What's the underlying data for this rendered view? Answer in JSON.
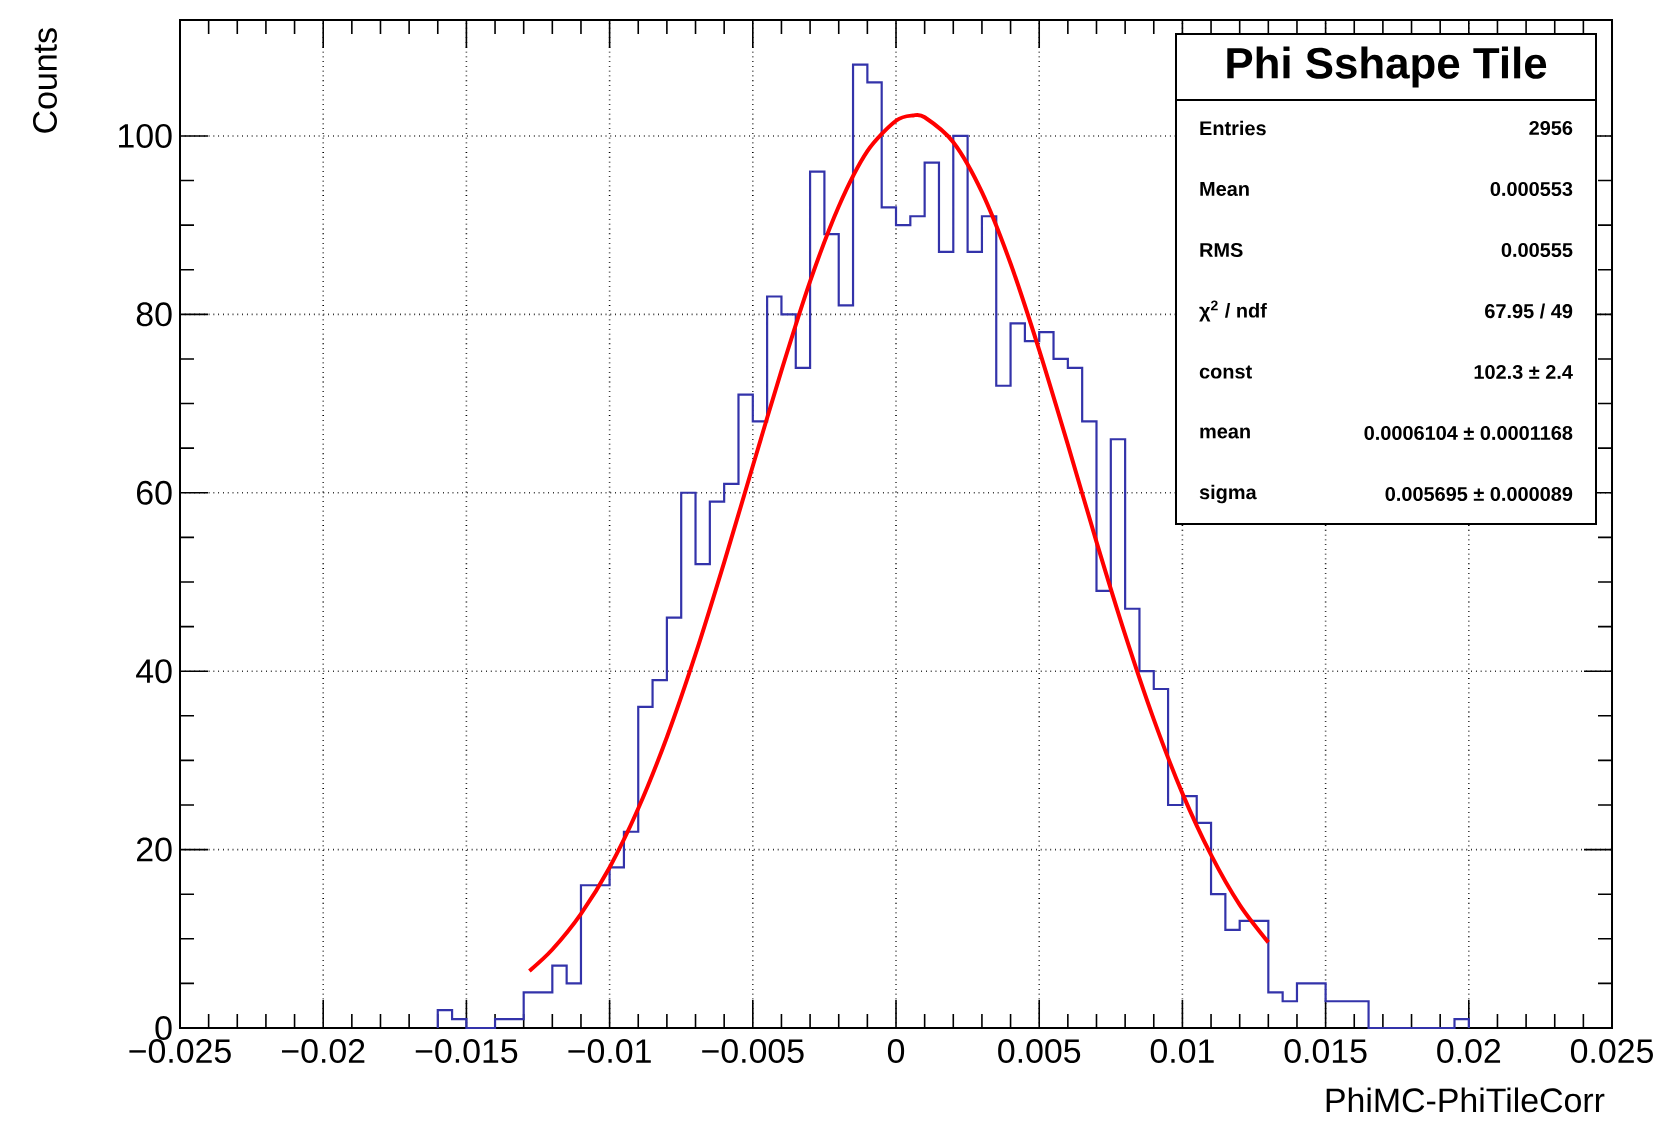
{
  "chart_data": {
    "type": "histogram",
    "xlabel": "PhiMC-PhiTileCorr",
    "ylabel": "Counts",
    "bins": [
      -0.016,
      -0.0155,
      -0.015,
      -0.0145,
      -0.014,
      -0.0135,
      -0.013,
      -0.0125,
      -0.012,
      -0.0115,
      -0.011,
      -0.0105,
      -0.01,
      -0.0095,
      -0.009,
      -0.0085,
      -0.008,
      -0.0075,
      -0.007,
      -0.0065,
      -0.006,
      -0.0055,
      -0.005,
      -0.0045,
      -0.004,
      -0.0035,
      -0.003,
      -0.0025,
      -0.002,
      -0.0015,
      -0.001,
      -0.0005,
      0,
      0.0005,
      0.001,
      0.0015,
      0.002,
      0.0025,
      0.003,
      0.0035,
      0.004,
      0.0045,
      0.005,
      0.0055,
      0.006,
      0.0065,
      0.007,
      0.0075,
      0.008,
      0.0085,
      0.009,
      0.0095,
      0.01,
      0.0105,
      0.011,
      0.0115,
      0.012,
      0.0125,
      0.013,
      0.0135,
      0.014,
      0.0145,
      0.015,
      0.0155,
      0.016,
      0.0165,
      0.017,
      0.0175,
      0.018,
      0.0185,
      0.019,
      0.0195,
      0.02
    ],
    "series": [
      {
        "type": "histogram",
        "color": "#3333aa",
        "values": [
          2,
          1,
          0,
          0,
          1,
          1,
          4,
          4,
          7,
          5,
          16,
          16,
          18,
          22,
          36,
          39,
          46,
          60,
          52,
          59,
          61,
          71,
          68,
          82,
          80,
          74,
          96,
          89,
          81,
          108,
          106,
          92,
          90,
          91,
          97,
          87,
          100,
          87,
          91,
          72,
          79,
          77,
          78,
          75,
          74,
          68,
          49,
          66,
          47,
          40,
          38,
          25,
          26,
          23,
          15,
          11,
          12,
          12,
          4,
          3,
          5,
          5,
          3,
          3,
          3,
          0,
          0,
          0,
          0,
          0,
          0,
          1
        ]
      },
      {
        "type": "line",
        "color": "#ff0000",
        "x": [
          -0.0128,
          -0.012,
          -0.011,
          -0.01,
          -0.009,
          -0.008,
          -0.007,
          -0.006,
          -0.005,
          -0.004,
          -0.003,
          -0.002,
          -0.001,
          0,
          0.0006,
          0.001,
          0.002,
          0.003,
          0.004,
          0.005,
          0.006,
          0.007,
          0.008,
          0.009,
          0.01,
          0.011,
          0.012,
          0.013
        ],
        "values": [
          6.4,
          8.8,
          12.8,
          18.0,
          24.6,
          32.6,
          41.9,
          52.2,
          63.0,
          73.7,
          83.7,
          92.1,
          98.3,
          101.7,
          102.3,
          102.1,
          99.3,
          93.7,
          85.7,
          76.0,
          65.4,
          54.5,
          44.1,
          34.6,
          26.3,
          19.4,
          13.8,
          9.6
        ]
      }
    ],
    "xlim": [
      -0.025,
      0.025
    ],
    "xticks": [
      {
        "value": -0.025,
        "label": "−0.025"
      },
      {
        "value": -0.02,
        "label": "−0.02"
      },
      {
        "value": -0.015,
        "label": "−0.015"
      },
      {
        "value": -0.01,
        "label": "−0.01"
      },
      {
        "value": -0.005,
        "label": "−0.005"
      },
      0,
      0.005,
      0.01,
      0.015,
      0.02,
      0.025
    ],
    "ylim": [
      0,
      113
    ],
    "yticks": [
      0,
      20,
      40,
      60,
      80,
      100
    ],
    "grid": true,
    "annotations": [
      "Phi Sshape Tile",
      "Entries",
      "2956",
      "Mean",
      "0.000553",
      "RMS",
      "0.00555",
      "χ$^{2}$ / ndf",
      "67.95 / 49",
      "const",
      "102.3 ± 2.4",
      "mean",
      "0.0006104 ± 0.0001168",
      "sigma",
      "0.005695 ± 0.000089"
    ]
  }
}
